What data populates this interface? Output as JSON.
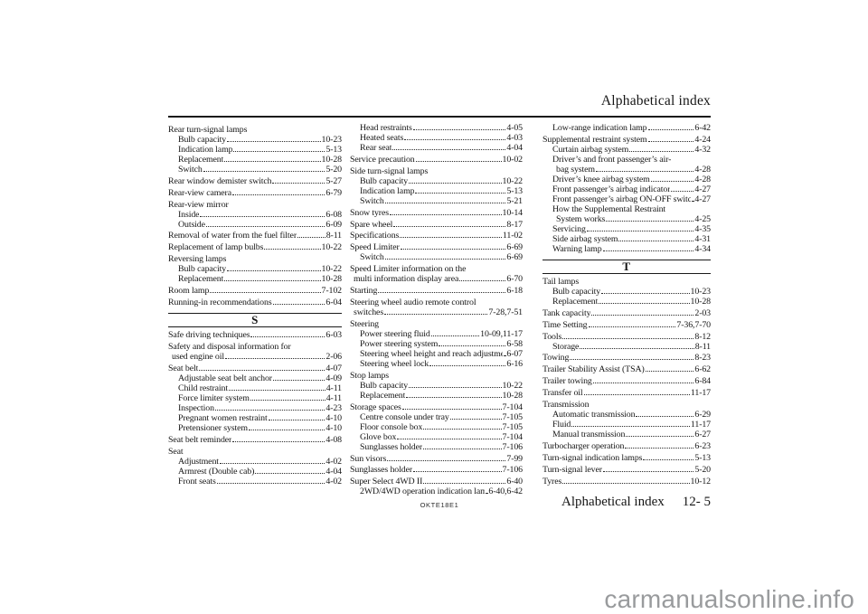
{
  "header": {
    "title": "Alphabetical index"
  },
  "footer": {
    "doc_code": "OKTE18E1",
    "section_label": "Alphabetical index",
    "page_number": "12- 5"
  },
  "watermark": {
    "text": "carmanualsonline.info",
    "color": "#999b9d"
  },
  "columns": [
    {
      "items": [
        {
          "k": "g",
          "t": "Rear turn-signal lamps"
        },
        {
          "k": "e",
          "lv": 1,
          "t": "Bulb capacity",
          "p": "10-23"
        },
        {
          "k": "e",
          "lv": 1,
          "t": "Indication lamp",
          "p": "5-13"
        },
        {
          "k": "e",
          "lv": 1,
          "t": "Replacement",
          "p": "10-28"
        },
        {
          "k": "e",
          "lv": 1,
          "t": "Switch",
          "p": "5-20"
        },
        {
          "k": "e",
          "lv": 0,
          "t": "Rear window demister switch",
          "p": "5-27"
        },
        {
          "k": "e",
          "lv": 0,
          "t": "Rear-view camera",
          "p": "6-79"
        },
        {
          "k": "g",
          "t": "Rear-view mirror"
        },
        {
          "k": "e",
          "lv": 1,
          "t": "Inside",
          "p": "6-08"
        },
        {
          "k": "e",
          "lv": 1,
          "t": "Outside",
          "p": "6-09"
        },
        {
          "k": "e",
          "lv": 0,
          "t": "Removal of water from the fuel filter",
          "p": "8-11"
        },
        {
          "k": "e",
          "lv": 0,
          "t": "Replacement of lamp bulbs",
          "p": "10-22"
        },
        {
          "k": "g",
          "t": "Reversing lamps"
        },
        {
          "k": "e",
          "lv": 1,
          "t": "Bulb capacity",
          "p": "10-22"
        },
        {
          "k": "e",
          "lv": 1,
          "t": "Replacement",
          "p": "10-28"
        },
        {
          "k": "e",
          "lv": 0,
          "t": "Room lamp",
          "p": "7-102"
        },
        {
          "k": "e",
          "lv": 0,
          "t": "Running-in recommendations",
          "p": "6-04"
        },
        {
          "k": "s",
          "t": "S"
        },
        {
          "k": "e",
          "lv": 0,
          "t": "Safe driving techniques",
          "p": "6-03"
        },
        {
          "k": "e2",
          "lv": 0,
          "t1": "Safety and disposal information for",
          "t2": "used engine oil",
          "p": "2-06"
        },
        {
          "k": "e",
          "lv": 0,
          "t": "Seat belt",
          "p": "4-07"
        },
        {
          "k": "e",
          "lv": 1,
          "t": "Adjustable seat belt anchor",
          "p": "4-09"
        },
        {
          "k": "e",
          "lv": 1,
          "t": "Child restraint",
          "p": "4-11"
        },
        {
          "k": "e",
          "lv": 1,
          "t": "Force limiter system",
          "p": "4-11"
        },
        {
          "k": "e",
          "lv": 1,
          "t": "Inspection",
          "p": "4-23"
        },
        {
          "k": "e",
          "lv": 1,
          "t": "Pregnant women restraint",
          "p": "4-10"
        },
        {
          "k": "e",
          "lv": 1,
          "t": "Pretensioner system",
          "p": "4-10"
        },
        {
          "k": "e",
          "lv": 0,
          "t": "Seat belt reminder",
          "p": "4-08"
        },
        {
          "k": "g",
          "t": "Seat"
        },
        {
          "k": "e",
          "lv": 1,
          "t": "Adjustment",
          "p": "4-02"
        },
        {
          "k": "e",
          "lv": 1,
          "t": "Armrest (Double cab)",
          "p": "4-04"
        },
        {
          "k": "e",
          "lv": 1,
          "t": "Front seats",
          "p": "4-02"
        }
      ]
    },
    {
      "items": [
        {
          "k": "e",
          "lv": 1,
          "t": "Head restraints",
          "p": "4-05"
        },
        {
          "k": "e",
          "lv": 1,
          "t": "Heated seats",
          "p": "4-03"
        },
        {
          "k": "e",
          "lv": 1,
          "t": "Rear seat",
          "p": "4-04"
        },
        {
          "k": "e",
          "lv": 0,
          "t": "Service precaution",
          "p": "10-02"
        },
        {
          "k": "g",
          "t": "Side turn-signal lamps"
        },
        {
          "k": "e",
          "lv": 1,
          "t": "Bulb capacity",
          "p": "10-22"
        },
        {
          "k": "e",
          "lv": 1,
          "t": "Indication lamp",
          "p": "5-13"
        },
        {
          "k": "e",
          "lv": 1,
          "t": "Switch",
          "p": "5-21"
        },
        {
          "k": "e",
          "lv": 0,
          "t": "Snow tyres",
          "p": "10-14"
        },
        {
          "k": "e",
          "lv": 0,
          "t": "Spare wheel",
          "p": "8-17"
        },
        {
          "k": "e",
          "lv": 0,
          "t": "Specifications",
          "p": "11-02"
        },
        {
          "k": "e",
          "lv": 0,
          "t": "Speed Limiter",
          "p": "6-69"
        },
        {
          "k": "e",
          "lv": 1,
          "t": "Switch",
          "p": "6-69"
        },
        {
          "k": "e2",
          "lv": 0,
          "t1": "Speed Limiter information on the",
          "t2": "multi information display area",
          "p": "6-70"
        },
        {
          "k": "e",
          "lv": 0,
          "t": "Starting",
          "p": "6-18"
        },
        {
          "k": "e2",
          "lv": 0,
          "t1": "Steering wheel audio remote control",
          "t2": "switches",
          "p": "7-28,7-51"
        },
        {
          "k": "g",
          "t": "Steering"
        },
        {
          "k": "e",
          "lv": 1,
          "t": "Power steering fluid",
          "p": "10-09,11-17"
        },
        {
          "k": "e",
          "lv": 1,
          "t": "Power steering system",
          "p": "6-58"
        },
        {
          "k": "e",
          "lv": 1,
          "t": "Steering wheel height and reach adjustment",
          "p": "6-07"
        },
        {
          "k": "e",
          "lv": 1,
          "t": "Steering wheel lock",
          "p": "6-16"
        },
        {
          "k": "g",
          "t": "Stop lamps"
        },
        {
          "k": "e",
          "lv": 1,
          "t": "Bulb capacity",
          "p": "10-22"
        },
        {
          "k": "e",
          "lv": 1,
          "t": "Replacement",
          "p": "10-28"
        },
        {
          "k": "e",
          "lv": 0,
          "t": "Storage spaces",
          "p": "7-104"
        },
        {
          "k": "e",
          "lv": 1,
          "t": "Centre console under tray",
          "p": "7-105"
        },
        {
          "k": "e",
          "lv": 1,
          "t": "Floor console box",
          "p": "7-105"
        },
        {
          "k": "e",
          "lv": 1,
          "t": "Glove box",
          "p": "7-104"
        },
        {
          "k": "e",
          "lv": 1,
          "t": "Sunglasses holder",
          "p": "7-106"
        },
        {
          "k": "e",
          "lv": 0,
          "t": "Sun visors",
          "p": "7-99"
        },
        {
          "k": "e",
          "lv": 0,
          "t": "Sunglasses holder",
          "p": "7-106"
        },
        {
          "k": "e",
          "lv": 0,
          "t": "Super Select 4WD II",
          "p": "6-40"
        },
        {
          "k": "e",
          "lv": 1,
          "t": "2WD/4WD operation indication lamp",
          "p": "6-40,6-42"
        }
      ]
    },
    {
      "items": [
        {
          "k": "e",
          "lv": 1,
          "t": "Low-range indication lamp",
          "p": "6-42"
        },
        {
          "k": "e",
          "lv": 0,
          "t": "Supplemental restraint system",
          "p": "4-24"
        },
        {
          "k": "e",
          "lv": 1,
          "t": "Curtain airbag system",
          "p": "4-32"
        },
        {
          "k": "e2",
          "lv": 1,
          "t1": "Driver’s and front passenger’s air-",
          "t2": "bag system",
          "p": "4-28"
        },
        {
          "k": "e",
          "lv": 1,
          "t": "Driver’s knee airbag system",
          "p": "4-28"
        },
        {
          "k": "e",
          "lv": 1,
          "t": "Front passenger’s airbag indicator",
          "p": "4-27"
        },
        {
          "k": "e",
          "lv": 1,
          "t": "Front passenger’s airbag ON-OFF switch",
          "p": "4-27"
        },
        {
          "k": "e2",
          "lv": 1,
          "t1": "How the Supplemental Restraint",
          "t2": "System works",
          "p": "4-25"
        },
        {
          "k": "e",
          "lv": 1,
          "t": "Servicing",
          "p": "4-35"
        },
        {
          "k": "e",
          "lv": 1,
          "t": "Side airbag system",
          "p": "4-31"
        },
        {
          "k": "e",
          "lv": 1,
          "t": "Warning lamp",
          "p": "4-34"
        },
        {
          "k": "s",
          "t": "T"
        },
        {
          "k": "g",
          "t": "Tail lamps"
        },
        {
          "k": "e",
          "lv": 1,
          "t": "Bulb capacity",
          "p": "10-23"
        },
        {
          "k": "e",
          "lv": 1,
          "t": "Replacement",
          "p": "10-28"
        },
        {
          "k": "e",
          "lv": 0,
          "t": "Tank capacity",
          "p": "2-03"
        },
        {
          "k": "e",
          "lv": 0,
          "t": "Time Setting",
          "p": "7-36,7-70"
        },
        {
          "k": "e",
          "lv": 0,
          "t": "Tools",
          "p": "8-12"
        },
        {
          "k": "e",
          "lv": 1,
          "t": "Storage",
          "p": "8-11"
        },
        {
          "k": "e",
          "lv": 0,
          "t": "Towing",
          "p": "8-23"
        },
        {
          "k": "e",
          "lv": 0,
          "t": "Trailer Stability Assist (TSA)",
          "p": "6-62"
        },
        {
          "k": "e",
          "lv": 0,
          "t": "Trailer towing",
          "p": "6-84"
        },
        {
          "k": "e",
          "lv": 0,
          "t": "Transfer oil",
          "p": "11-17"
        },
        {
          "k": "g",
          "t": "Transmission"
        },
        {
          "k": "e",
          "lv": 1,
          "t": "Automatic transmission",
          "p": "6-29"
        },
        {
          "k": "e",
          "lv": 1,
          "t": "Fluid",
          "p": "11-17"
        },
        {
          "k": "e",
          "lv": 1,
          "t": "Manual transmission",
          "p": "6-27"
        },
        {
          "k": "e",
          "lv": 0,
          "t": "Turbocharger operation",
          "p": "6-23"
        },
        {
          "k": "e",
          "lv": 0,
          "t": "Turn-signal indication lamps",
          "p": "5-13"
        },
        {
          "k": "e",
          "lv": 0,
          "t": "Turn-signal lever",
          "p": "5-20"
        },
        {
          "k": "e",
          "lv": 0,
          "t": "Tyres",
          "p": "10-12"
        }
      ]
    }
  ]
}
